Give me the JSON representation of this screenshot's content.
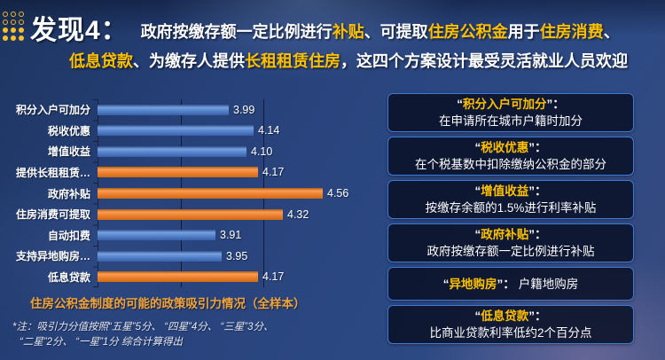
{
  "header": {
    "finding_label": "发现4：",
    "title_line1": [
      {
        "text": "政府按缴存额一定比例进行",
        "hl": false
      },
      {
        "text": "补贴",
        "hl": true
      },
      {
        "text": "、可提取",
        "hl": false
      },
      {
        "text": "住房公积金",
        "hl": true
      },
      {
        "text": "用于",
        "hl": false
      },
      {
        "text": "住房消费",
        "hl": true
      },
      {
        "text": "、",
        "hl": false
      }
    ],
    "title_line2": [
      {
        "text": "低息贷款",
        "hl": true
      },
      {
        "text": "、为缴存人提供",
        "hl": false
      },
      {
        "text": "长租租赁住房",
        "hl": true
      },
      {
        "text": "，这四个方案设计最受灵活就业人员欢迎",
        "hl": false
      }
    ]
  },
  "chart_data": {
    "type": "bar",
    "orientation": "horizontal",
    "title": "住房公积金制度的可能的政策吸引力情况（全样本）",
    "categories": [
      "积分入户可加分",
      "税收优惠",
      "增值收益",
      "提供长租租赁…",
      "政府补贴",
      "住房消费可提取",
      "自动扣费",
      "支持异地购房…",
      "低息贷款"
    ],
    "values": [
      3.99,
      4.14,
      4.1,
      4.17,
      4.56,
      4.32,
      3.91,
      3.95,
      4.17
    ],
    "value_labels": [
      "3.99",
      "4.14",
      "4.10",
      "4.17",
      "4.56",
      "4.32",
      "3.91",
      "3.95",
      "4.17"
    ],
    "bar_colors": [
      "blue",
      "blue",
      "blue",
      "orange",
      "orange",
      "orange",
      "blue",
      "blue",
      "orange"
    ],
    "xlim": [
      3.2,
      4.7
    ],
    "gridline_values": [
      3.7,
      4.2
    ],
    "grid": "vertical-lines",
    "legend": "none",
    "note_lines": [
      "*注：吸引力分值按照“五星”5分、 “四星”4分、 “三星”3分、",
      "“二星”2分、 “一星”1分 综合计算得出"
    ]
  },
  "definitions": [
    {
      "term": "积分入户可加分",
      "desc": "在申请所在城市户籍时加分",
      "inline": false
    },
    {
      "term": "税收优惠",
      "desc": "在个税基数中扣除缴纳公积金的部分",
      "inline": false
    },
    {
      "term": "增值收益",
      "desc": "按缴存余额的1.5%进行利率补贴",
      "inline": false
    },
    {
      "term": "政府补贴",
      "desc": "政府按缴存额一定比例进行补贴",
      "inline": false
    },
    {
      "term": "异地购房",
      "desc": "户籍地购房",
      "inline": true
    },
    {
      "term": "低息贷款",
      "desc": "比商业贷款利率低约2个百分点",
      "inline": false
    }
  ],
  "colors": {
    "background": "#2b4781",
    "bar_blue": "#4472C4",
    "bar_orange": "#ED7D31",
    "highlight_yellow": "#FFC000",
    "caption_orange": "#F2A43B",
    "card_border_blue": "#3F7AD9",
    "card_fill": "#090F24"
  }
}
